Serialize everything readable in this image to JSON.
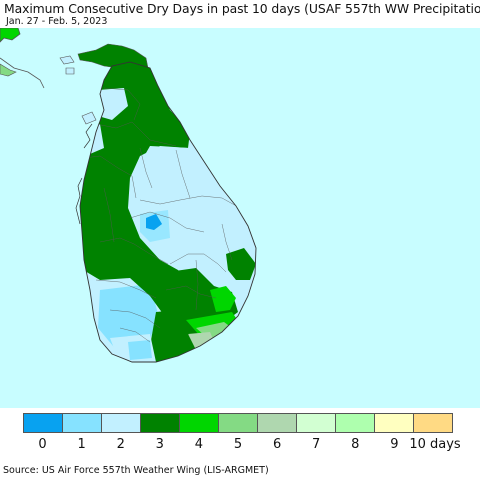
{
  "title": "Maximum Consecutive Dry Days in past 10 days (USAF 557th WW Precipitation)",
  "date_range": "Jan. 27 - Feb. 5, 2023",
  "source": "Source: US Air Force 557th Weather Wing (LIS-ARGMET)",
  "legend": {
    "colors": [
      "#08a2f0",
      "#86e2ff",
      "#c2f0ff",
      "#008200",
      "#00d600",
      "#84da84",
      "#afd7af",
      "#d2ffd2",
      "#aeffae",
      "#ffffc0",
      "#ffda84"
    ],
    "labels": [
      "0",
      "1",
      "2",
      "3",
      "4",
      "5",
      "6",
      "7",
      "8",
      "9",
      "10 days"
    ]
  },
  "map_colors": {
    "ocean": "#c8fdff",
    "land_light": "#c2f0ff",
    "land_mid": "#86e2ff",
    "land_dark": "#08a2f0",
    "dry_3": "#008200",
    "dry_4": "#00d600",
    "dry_5": "#84da84",
    "dry_6": "#afd7af",
    "border": "#555555"
  }
}
